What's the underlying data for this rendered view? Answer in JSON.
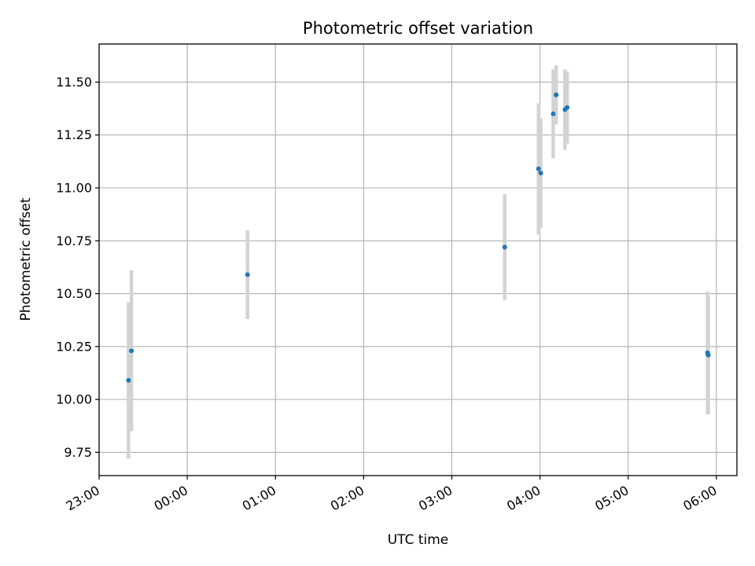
{
  "chart_data": {
    "type": "scatter",
    "title": "Photometric offset variation",
    "xlabel": "UTC time",
    "ylabel": "Photometric offset",
    "grid": true,
    "x_unit": "minutes after 23:00 UTC",
    "xlim": [
      0,
      434
    ],
    "ylim": [
      9.64,
      11.68
    ],
    "xticks": [
      {
        "value": 0,
        "label": "23:00"
      },
      {
        "value": 60,
        "label": "00:00"
      },
      {
        "value": 120,
        "label": "01:00"
      },
      {
        "value": 180,
        "label": "02:00"
      },
      {
        "value": 240,
        "label": "03:00"
      },
      {
        "value": 300,
        "label": "04:00"
      },
      {
        "value": 360,
        "label": "05:00"
      },
      {
        "value": 420,
        "label": "06:00"
      }
    ],
    "yticks": [
      {
        "value": 9.75,
        "label": "9.75"
      },
      {
        "value": 10.0,
        "label": "10.00"
      },
      {
        "value": 10.25,
        "label": "10.25"
      },
      {
        "value": 10.5,
        "label": "10.50"
      },
      {
        "value": 10.75,
        "label": "10.75"
      },
      {
        "value": 11.0,
        "label": "11.00"
      },
      {
        "value": 11.25,
        "label": "11.25"
      },
      {
        "value": 11.5,
        "label": "11.50"
      }
    ],
    "colors": {
      "point": "#1f77b4",
      "errorbar": "#d3d3d3",
      "grid": "#b0b0b0"
    },
    "points": [
      {
        "time": "23:20",
        "x": 20.0,
        "y": 10.09,
        "err": 0.37
      },
      {
        "time": "23:22",
        "x": 22.0,
        "y": 10.23,
        "err": 0.38
      },
      {
        "time": "00:41",
        "x": 101.0,
        "y": 10.59,
        "err": 0.21
      },
      {
        "time": "03:36",
        "x": 276.0,
        "y": 10.72,
        "err": 0.25
      },
      {
        "time": "03:59",
        "x": 299.0,
        "y": 11.09,
        "err": 0.31
      },
      {
        "time": "04:01",
        "x": 300.5,
        "y": 11.07,
        "err": 0.26
      },
      {
        "time": "04:09",
        "x": 309.0,
        "y": 11.35,
        "err": 0.21
      },
      {
        "time": "04:11",
        "x": 311.0,
        "y": 11.44,
        "err": 0.14
      },
      {
        "time": "04:17",
        "x": 317.0,
        "y": 11.37,
        "err": 0.19
      },
      {
        "time": "04:18",
        "x": 318.5,
        "y": 11.38,
        "err": 0.17
      },
      {
        "time": "05:54",
        "x": 414.0,
        "y": 10.22,
        "err": 0.29
      },
      {
        "time": "05:55",
        "x": 414.5,
        "y": 10.21,
        "err": 0.28
      }
    ]
  }
}
